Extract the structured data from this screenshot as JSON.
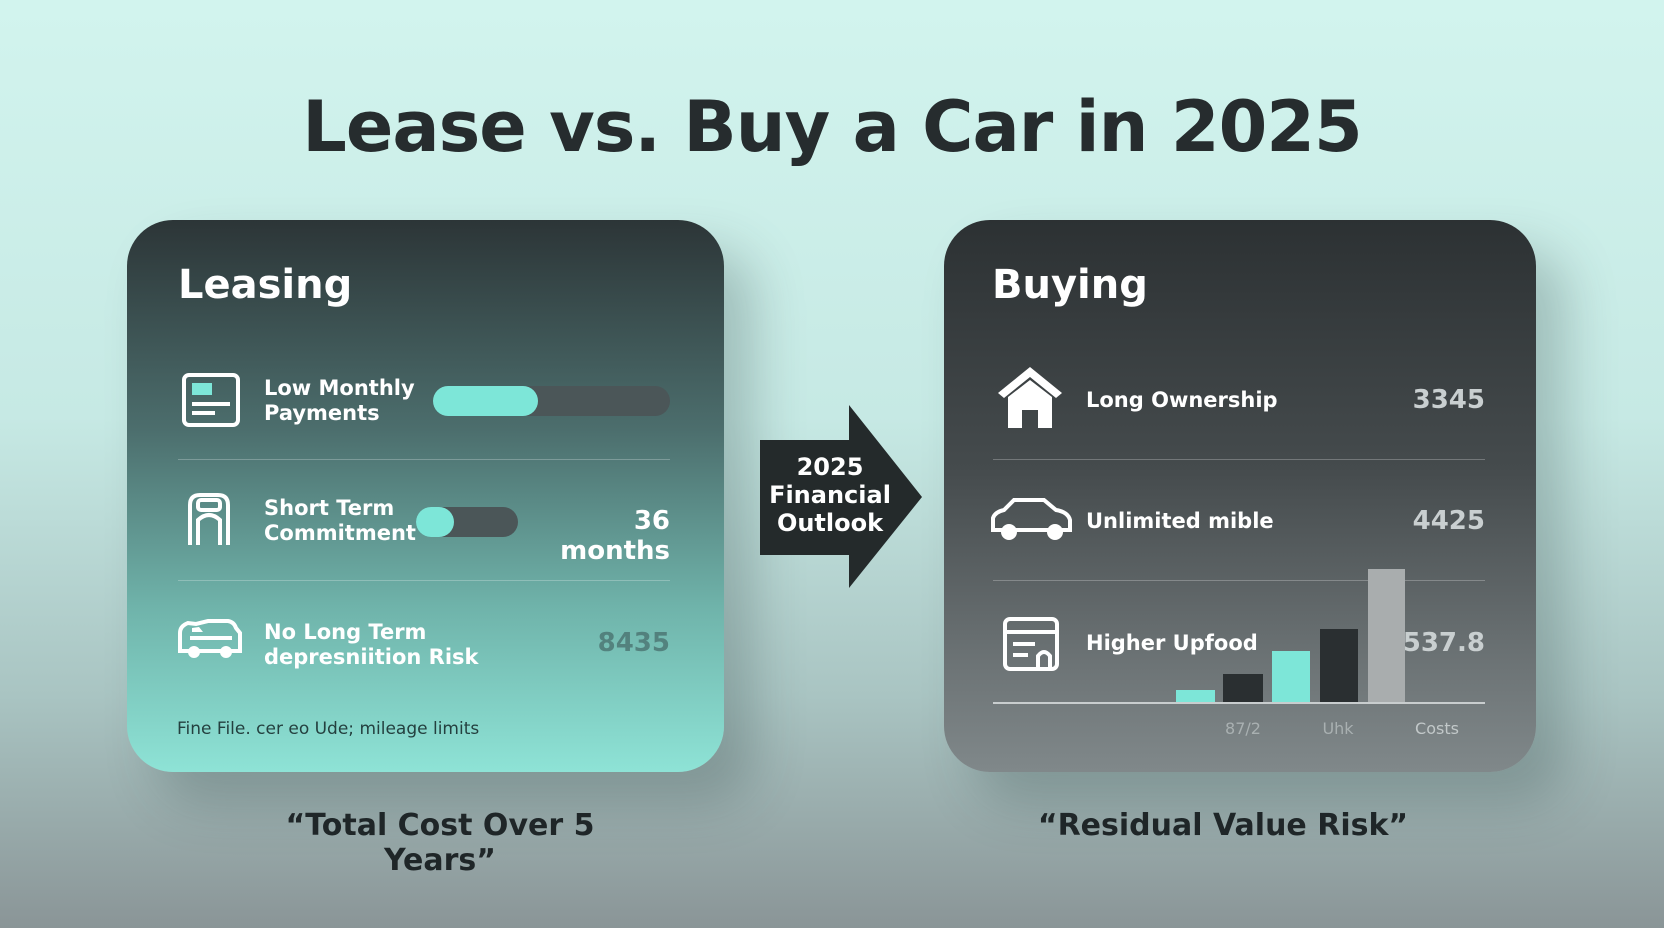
{
  "title": "Lease vs. Buy a Car in 2025",
  "leasing": {
    "heading": "Leasing",
    "items": [
      {
        "label": "Low Monthly Payments"
      },
      {
        "label": "Short Term Commitment",
        "value": "36 months"
      },
      {
        "label": "No Long Term depresniition Risk",
        "value": "8435"
      }
    ],
    "footnote": "Fine File. cer eo Ude; mileage limits",
    "caption": "“Total Cost Over 5 Years”"
  },
  "arrow": {
    "label": "2025 Financial Outlook"
  },
  "buying": {
    "heading": "Buying",
    "items": [
      {
        "label": "Long Ownership",
        "value": "3345"
      },
      {
        "label": "Unlimited mible",
        "value": "4425"
      },
      {
        "label": "Higher Upfood",
        "value": "537.8"
      }
    ],
    "axis_labels": [
      "87/2",
      "Uhk",
      "Costs"
    ],
    "caption": "“Residual Value Risk”"
  }
}
